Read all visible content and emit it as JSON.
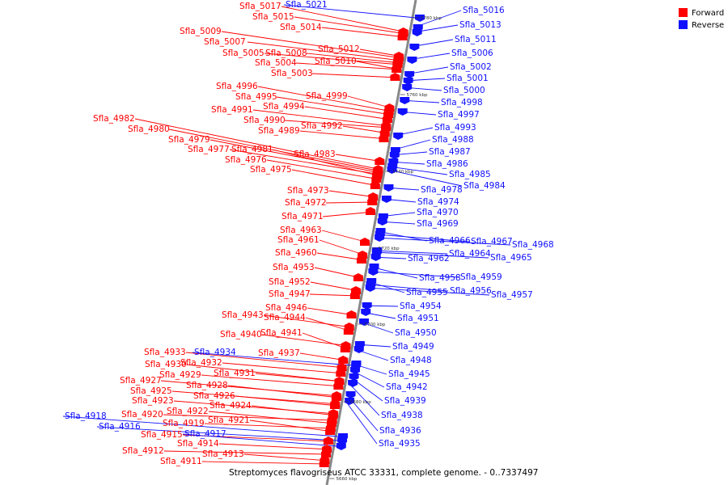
{
  "legend": {
    "forward_label": "Forward",
    "reverse_label": "Reverse",
    "forward_color": "#ff0000",
    "reverse_color": "#1010ff"
  },
  "caption": {
    "organism": "Streptomyces flavogriseus",
    "suffix": " ATCC 33331, complete genome. - 0..7337497"
  },
  "scale_ticks": [
    "5780 kbp",
    "5760 kbp",
    "5740 kbp",
    "5720 kbp",
    "5700 kbp",
    "5680 kbp",
    "5660 kbp"
  ],
  "forward_genes": [
    "Sfla_5017",
    "Sfla_5015",
    "Sfla_5014",
    "Sfla_5009",
    "Sfla_5007",
    "Sfla_5005",
    "Sfla_5008",
    "Sfla_5012",
    "Sfla_5004",
    "Sfla_5010",
    "Sfla_5003",
    "Sfla_4996",
    "Sfla_4995",
    "Sfla_4999",
    "Sfla_4994",
    "Sfla_4991",
    "Sfla_4990",
    "Sfla_4982",
    "Sfla_4992",
    "Sfla_4980",
    "Sfla_4989",
    "Sfla_4979",
    "Sfla_4977",
    "Sfla_4981",
    "Sfla_4983",
    "Sfla_4976",
    "Sfla_4975",
    "Sfla_4973",
    "Sfla_4972",
    "Sfla_4971",
    "Sfla_4963",
    "Sfla_4961",
    "Sfla_4960",
    "Sfla_4953",
    "Sfla_4952",
    "Sfla_4947",
    "Sfla_4946",
    "Sfla_4943",
    "Sfla_4944",
    "Sfla_4940",
    "Sfla_4941",
    "Sfla_4933",
    "Sfla_4937",
    "Sfla_4932",
    "Sfla_4930",
    "Sfla_4929",
    "Sfla_4931",
    "Sfla_4927",
    "Sfla_4928",
    "Sfla_4925",
    "Sfla_4926",
    "Sfla_4923",
    "Sfla_4924",
    "Sfla_4920",
    "Sfla_4922",
    "Sfla_4919",
    "Sfla_4921",
    "Sfla_4915",
    "Sfla_4914",
    "Sfla_4912",
    "Sfla_4913",
    "Sfla_4911"
  ],
  "reverse_genes": [
    "Sfla_5021",
    "Sfla_5016",
    "Sfla_5013",
    "Sfla_5011",
    "Sfla_5006",
    "Sfla_5002",
    "Sfla_5001",
    "Sfla_5000",
    "Sfla_4998",
    "Sfla_4997",
    "Sfla_4993",
    "Sfla_4988",
    "Sfla_4987",
    "Sfla_4986",
    "Sfla_4985",
    "Sfla_4984",
    "Sfla_4978",
    "Sfla_4974",
    "Sfla_4970",
    "Sfla_4969",
    "Sfla_4966",
    "Sfla_4967",
    "Sfla_4968",
    "Sfla_4964",
    "Sfla_4965",
    "Sfla_4962",
    "Sfla_4958",
    "Sfla_4959",
    "Sfla_4955",
    "Sfla_4956",
    "Sfla_4957",
    "Sfla_4954",
    "Sfla_4951",
    "Sfla_4950",
    "Sfla_4949",
    "Sfla_4948",
    "Sfla_4945",
    "Sfla_4942",
    "Sfla_4939",
    "Sfla_4938",
    "Sfla_4936",
    "Sfla_4935",
    "Sfla_4934",
    "Sfla_4918",
    "Sfla_4916",
    "Sfla_4917"
  ]
}
